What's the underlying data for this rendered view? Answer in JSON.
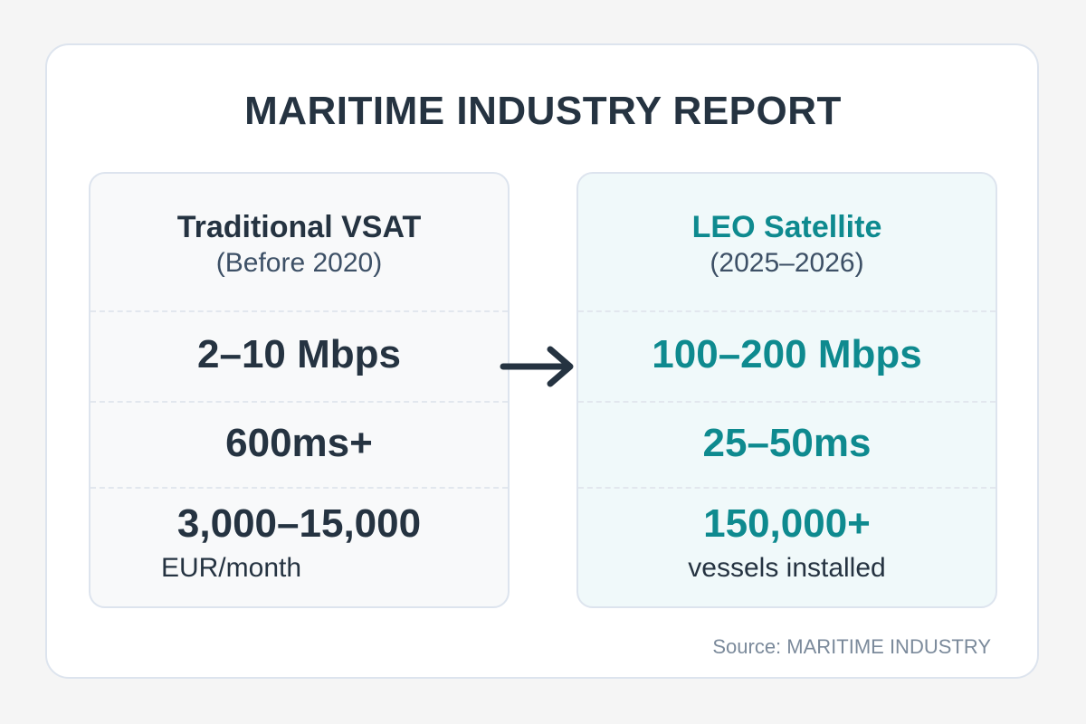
{
  "title": "MARITIME INDUSTRY REPORT",
  "left": {
    "name": "Traditional VSAT",
    "period": "(Before 2020)",
    "speed": "2–10 Mbps",
    "latency": "600ms+",
    "cost": "3,000–15,000",
    "cost_unit": "EUR/month"
  },
  "right": {
    "name": "LEO Satellite",
    "period": "(2025–2026)",
    "speed": "100–200 Mbps",
    "latency": "25–50ms",
    "count": "150,000+",
    "count_unit": "vessels installed"
  },
  "arrow_icon": "arrow-right-icon",
  "source": "Source: MARITIME INDUSTRY",
  "colors": {
    "dark": "#253341",
    "teal": "#0e8a8f"
  }
}
